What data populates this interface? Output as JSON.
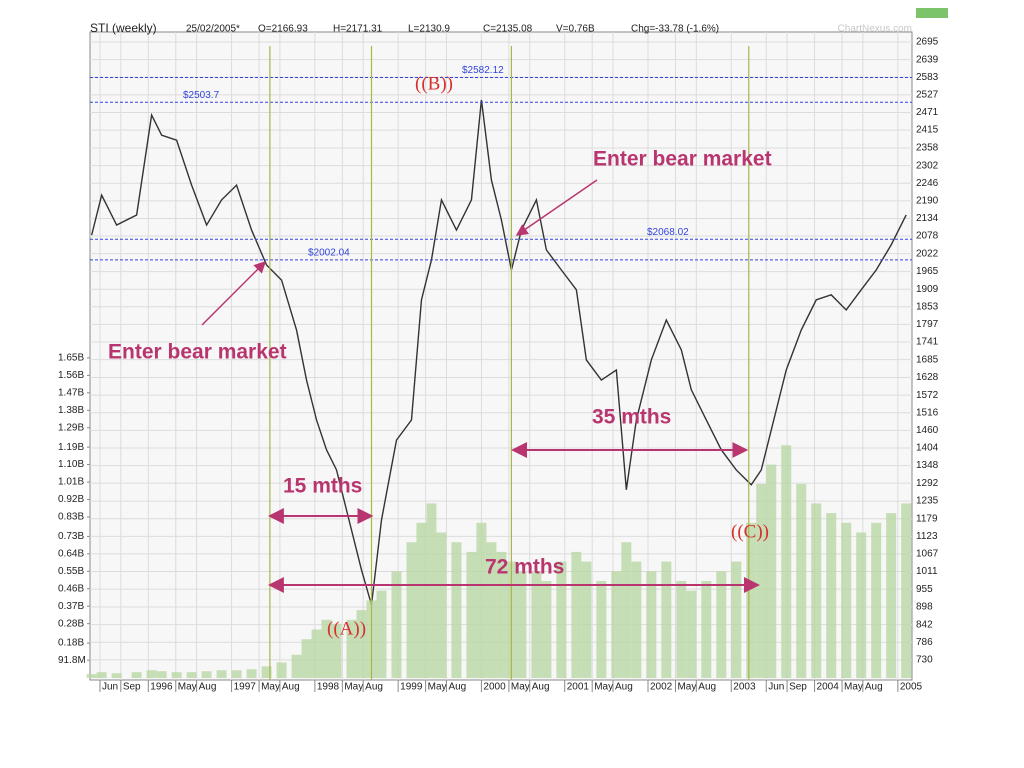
{
  "chart_data": {
    "type": "line",
    "header": [
      "STI (weekly)",
      "25/02/2005*",
      "O=2166.93",
      "H=2171.31",
      "L=2130.9",
      "C=2135.08",
      "V=0.76B",
      "Chg=-33.78 (-1.6%)"
    ],
    "source": "ChartNexus.com",
    "x": [
      1995.32,
      1995.44,
      1995.62,
      1995.86,
      1996.04,
      1996.16,
      1996.34,
      1996.52,
      1996.7,
      1996.88,
      1997.06,
      1997.24,
      1997.42,
      1997.6,
      1997.78,
      1997.9,
      1998.02,
      1998.14,
      1998.26,
      1998.44,
      1998.56,
      1998.68,
      1998.8,
      1998.98,
      1999.16,
      1999.28,
      1999.4,
      1999.52,
      1999.7,
      1999.88,
      2000.0,
      2000.12,
      2000.24,
      2000.36,
      2000.48,
      2000.66,
      2000.78,
      2000.96,
      2001.14,
      2001.26,
      2001.44,
      2001.62,
      2001.74,
      2001.86,
      2002.04,
      2002.22,
      2002.4,
      2002.52,
      2002.7,
      2002.88,
      2003.06,
      2003.24,
      2003.36,
      2003.48,
      2003.66,
      2003.84,
      2004.02,
      2004.2,
      2004.38,
      2004.56,
      2004.74,
      2004.92,
      2005.1
    ],
    "series": [
      {
        "color": "#333333",
        "values": [
          2081,
          2208,
          2113,
          2145,
          2463,
          2399,
          2383,
          2240,
          2113,
          2193,
          2240,
          2097,
          1986,
          1938,
          1779,
          1620,
          1493,
          1398,
          1334,
          1143,
          1016,
          905,
          1175,
          1429,
          1493,
          1875,
          2002,
          2193,
          2097,
          2193,
          2511,
          2256,
          2129,
          1970,
          2097,
          2193,
          2034,
          1970,
          1907,
          1684,
          1620,
          1652,
          1271,
          1493,
          1684,
          1811,
          1716,
          1589,
          1493,
          1398,
          1334,
          1287,
          1334,
          1461,
          1652,
          1779,
          1875,
          1891,
          1843,
          1907,
          1970,
          2050,
          2145
        ]
      },
      {
        "type": "bar",
        "axis": "y2",
        "color": "#b9d7a4",
        "values": [
          20000000,
          30000000,
          25000000,
          30000000,
          40000000,
          35000000,
          30000000,
          30000000,
          35000000,
          40000000,
          40000000,
          45000000,
          60000000,
          80000000,
          120000000,
          200000000,
          250000000,
          300000000,
          280000000,
          300000000,
          350000000,
          400000000,
          450000000,
          550000000,
          700000000,
          800000000,
          900000000,
          750000000,
          700000000,
          650000000,
          800000000,
          700000000,
          650000000,
          600000000,
          550000000,
          550000000,
          500000000,
          600000000,
          650000000,
          600000000,
          500000000,
          550000000,
          700000000,
          600000000,
          550000000,
          600000000,
          500000000,
          450000000,
          500000000,
          550000000,
          600000000,
          800000000,
          1000000000,
          1100000000,
          1200000000,
          1000000000,
          900000000,
          850000000,
          800000000,
          750000000,
          800000000,
          850000000,
          900000000
        ]
      }
    ],
    "xlim": [
      1995.3,
      2005.17
    ],
    "xticks": [
      {
        "value": 1995.42,
        "label": "Jun"
      },
      {
        "value": 1995.67,
        "label": "Sep"
      },
      1996,
      {
        "value": 1996.33,
        "label": "May"
      },
      {
        "value": 1996.58,
        "label": "Aug"
      },
      1997,
      {
        "value": 1997.33,
        "label": "May"
      },
      {
        "value": 1997.58,
        "label": "Aug"
      },
      1998,
      {
        "value": 1998.33,
        "label": "May"
      },
      {
        "value": 1998.58,
        "label": "Aug"
      },
      1999,
      {
        "value": 1999.33,
        "label": "May"
      },
      {
        "value": 1999.58,
        "label": "Aug"
      },
      2000,
      {
        "value": 2000.33,
        "label": "May"
      },
      {
        "value": 2000.58,
        "label": "Aug"
      },
      2001,
      {
        "value": 2001.33,
        "label": "May"
      },
      {
        "value": 2001.58,
        "label": "Aug"
      },
      2002,
      {
        "value": 2002.33,
        "label": "May"
      },
      {
        "value": 2002.58,
        "label": "Aug"
      },
      2003,
      {
        "value": 2003.42,
        "label": "Jun"
      },
      {
        "value": 2003.67,
        "label": "Sep"
      },
      2004,
      {
        "value": 2004.33,
        "label": "May"
      },
      {
        "value": 2004.58,
        "label": "Aug"
      },
      2005
    ],
    "ylim": [
      666,
      2727
    ],
    "yticks": [
      2695,
      2639,
      2583,
      2527,
      2471,
      2415,
      2358,
      2302,
      2246,
      2190,
      2134,
      2078,
      2022,
      1965,
      1909,
      1853,
      1797,
      1741,
      1685,
      1628,
      1572,
      1516,
      1460,
      1404,
      1348,
      1292,
      1235,
      1179,
      1123,
      1067,
      1011,
      955,
      898,
      842,
      786,
      730
    ],
    "y2lim": [
      0,
      3330000000
    ],
    "y2ticks": [
      {
        "value": 1650000000,
        "label": "1.65B"
      },
      {
        "value": 1560000000,
        "label": "1.56B"
      },
      {
        "value": 1470000000,
        "label": "1.47B"
      },
      {
        "value": 1380000000,
        "label": "1.38B"
      },
      {
        "value": 1290000000,
        "label": "1.29B"
      },
      {
        "value": 1190000000,
        "label": "1.19B"
      },
      {
        "value": 1100000000,
        "label": "1.10B"
      },
      {
        "value": 1010000000,
        "label": "1.01B"
      },
      {
        "value": 920000000,
        "label": "0.92B"
      },
      {
        "value": 830000000,
        "label": "0.83B"
      },
      {
        "value": 730000000,
        "label": "0.73B"
      },
      {
        "value": 640000000,
        "label": "0.64B"
      },
      {
        "value": 550000000,
        "label": "0.55B"
      },
      {
        "value": 460000000,
        "label": "0.46B"
      },
      {
        "value": 370000000,
        "label": "0.37B"
      },
      {
        "value": 280000000,
        "label": "0.28B"
      },
      {
        "value": 180000000,
        "label": "0.18B"
      },
      {
        "value": 91800000,
        "label": "91.8M"
      }
    ],
    "grid": true,
    "levels": {
      "values": [
        2503.7,
        2582.12,
        2068.02,
        2002.04
      ],
      "value_labels": [
        "$2503.7",
        "$2582.12",
        "$2068.02",
        "$2002.04"
      ],
      "color": "#3344dd"
    },
    "vlines": {
      "values": [
        1997.46,
        1998.68,
        2000.36,
        2003.21
      ],
      "color": "#a8b64a"
    },
    "spans": [
      {
        "label": "15 mths",
        "from": 1997.46,
        "to": 1998.68
      },
      {
        "label": "72 mths",
        "from": 1997.46,
        "to": 2003.32
      },
      {
        "label": "35 mths",
        "from": 2000.38,
        "to": 2003.18
      }
    ],
    "annotations": [
      "Enter bear market",
      "Enter bear market",
      "((A))",
      "((B))",
      "((C))"
    ]
  }
}
